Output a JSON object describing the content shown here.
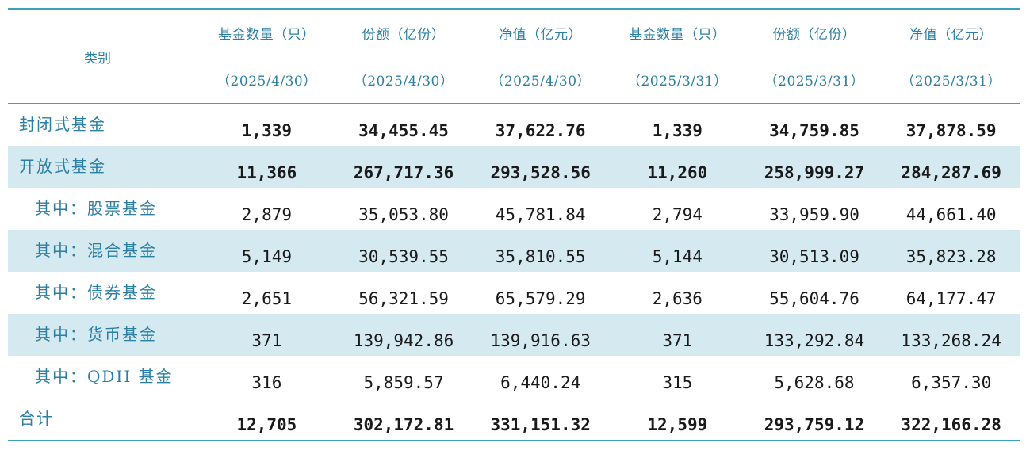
{
  "table": {
    "header": {
      "category": "类别",
      "columns": [
        {
          "line1": "基金数量（只）",
          "line2": "（2025/4/30）"
        },
        {
          "line1": "份额（亿份）",
          "line2": "（2025/4/30）"
        },
        {
          "line1": "净值（亿元）",
          "line2": "（2025/4/30）"
        },
        {
          "line1": "基金数量（只）",
          "line2": "（2025/3/31）"
        },
        {
          "line1": "份额（亿份）",
          "line2": "（2025/3/31）"
        },
        {
          "line1": "净值（亿元）",
          "line2": "（2025/3/31）"
        }
      ]
    },
    "rows": [
      {
        "name": "封闭式基金",
        "values": [
          "1,339",
          "34,455.45",
          "37,622.76",
          "1,339",
          "34,759.85",
          "37,878.59"
        ]
      },
      {
        "name": "开放式基金",
        "values": [
          "11,366",
          "267,717.36",
          "293,528.56",
          "11,260",
          "258,999.27",
          "284,287.69"
        ]
      },
      {
        "name": "其中：股票基金",
        "values": [
          "2,879",
          "35,053.80",
          "45,781.84",
          "2,794",
          "33,959.90",
          "44,661.40"
        ]
      },
      {
        "name": "其中：混合基金",
        "values": [
          "5,149",
          "30,539.55",
          "35,810.55",
          "5,144",
          "30,513.09",
          "35,823.28"
        ]
      },
      {
        "name": "其中：债券基金",
        "values": [
          "2,651",
          "56,321.59",
          "65,579.29",
          "2,636",
          "55,604.76",
          "64,177.47"
        ]
      },
      {
        "name": "其中：货币基金",
        "values": [
          "371",
          "139,942.86",
          "139,916.63",
          "371",
          "133,292.84",
          "133,268.24"
        ]
      },
      {
        "name": "其中：QDII 基金",
        "values": [
          "316",
          "5,859.57",
          "6,440.24",
          "315",
          "5,628.68",
          "6,357.30"
        ]
      },
      {
        "name": "合计",
        "values": [
          "12,705",
          "302,172.81",
          "331,151.32",
          "12,599",
          "293,759.12",
          "322,166.28"
        ]
      }
    ]
  },
  "colors": {
    "header_text": "#2b7fa3",
    "rule": "#3aa0bd",
    "shaded_row": "#d5e9f1",
    "body_text": "#1a1a1a"
  }
}
